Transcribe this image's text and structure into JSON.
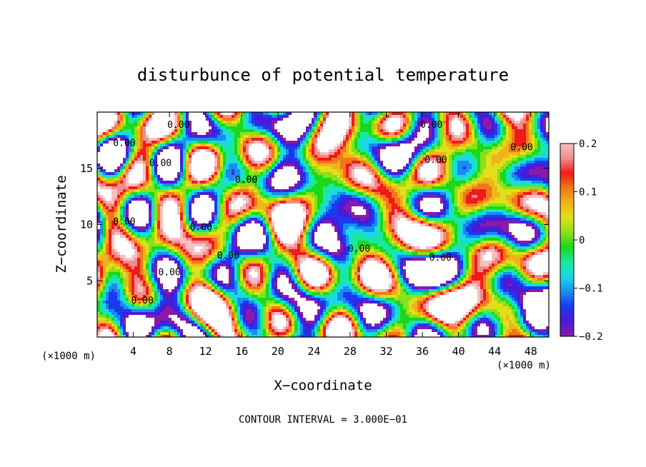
{
  "chart_data": {
    "type": "heatmap",
    "title": "disturbunce of potential temperature",
    "xlabel": "X−coordinate",
    "ylabel": "Z−coordinate",
    "x_unit": "(×1000 m)",
    "z_unit": "(×1000 m)",
    "xlim": [
      0,
      50
    ],
    "ylim": [
      0,
      20
    ],
    "x_ticks": [
      "4",
      "8",
      "12",
      "16",
      "20",
      "24",
      "28",
      "32",
      "36",
      "40",
      "44",
      "48"
    ],
    "y_ticks": [
      "5",
      "10",
      "15"
    ],
    "footer": "CONTOUR INTERVAL = 3.000E−01",
    "contour_label": "0.00",
    "colorbar": {
      "min": -0.2,
      "max": 0.2,
      "tick_labels": [
        "0.2",
        "0.1",
        "0",
        "−0.1",
        "−0.2"
      ],
      "colors": [
        "#8b1aa8",
        "#4a1ad8",
        "#1a3af0",
        "#1a8cf0",
        "#1ad8e8",
        "#1ae8a0",
        "#1ad81a",
        "#8ce01a",
        "#e0e01a",
        "#f0b41a",
        "#f0781a",
        "#f01a1a",
        "#f08c8c",
        "#f8c0c0"
      ]
    },
    "contour_label_positions": [
      [
        3,
        17
      ],
      [
        7,
        15.2
      ],
      [
        16.5,
        13.7
      ],
      [
        3,
        10
      ],
      [
        11.5,
        9.5
      ],
      [
        14.5,
        7
      ],
      [
        8,
        5.5
      ],
      [
        5,
        3
      ],
      [
        29,
        7.6
      ],
      [
        38,
        6.8
      ],
      [
        37,
        18.6
      ],
      [
        47,
        16.6
      ],
      [
        37.5,
        15.5
      ],
      [
        9,
        18.6
      ]
    ]
  }
}
